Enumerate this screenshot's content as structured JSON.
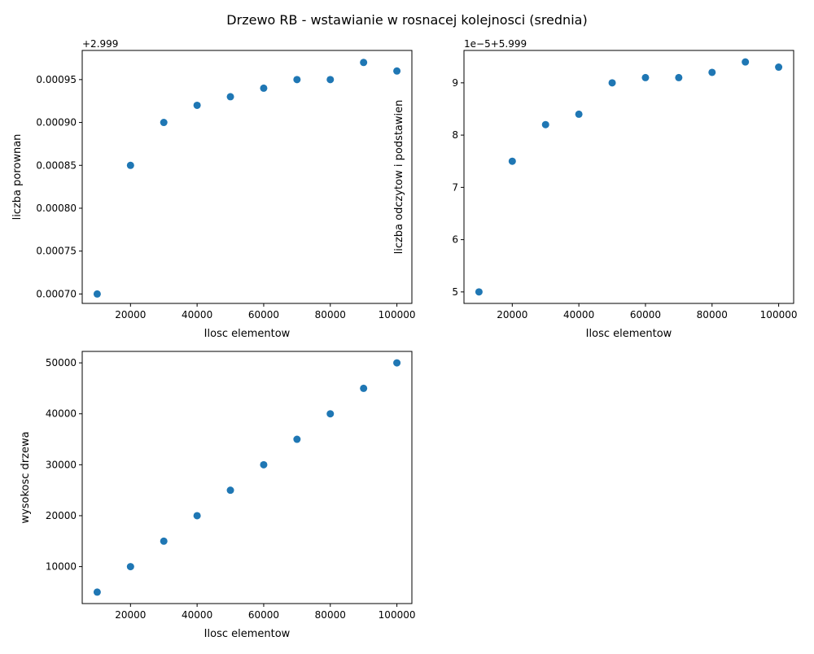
{
  "figure": {
    "suptitle": "Drzewo RB - wstawianie w rosnacej kolejnosci (srednia)"
  },
  "chart_data": [
    {
      "type": "scatter",
      "xlabel": "Ilosc elementow",
      "ylabel": "liczba porownan",
      "offset_label": "+2.999",
      "xlim": [
        5500,
        104500
      ],
      "ylim": [
        0.000689,
        0.000984
      ],
      "xticks": [
        20000,
        40000,
        60000,
        80000,
        100000
      ],
      "xtick_labels": [
        "20000",
        "40000",
        "60000",
        "80000",
        "100000"
      ],
      "yticks": [
        0.0007,
        0.00075,
        0.0008,
        0.00085,
        0.0009,
        0.00095
      ],
      "ytick_labels": [
        "0.00070",
        "0.00075",
        "0.00080",
        "0.00085",
        "0.00090",
        "0.00095"
      ],
      "x": [
        10000,
        20000,
        30000,
        40000,
        50000,
        60000,
        70000,
        80000,
        90000,
        100000
      ],
      "y": [
        0.0007,
        0.00085,
        0.0009,
        0.00092,
        0.00093,
        0.00094,
        0.00095,
        0.00095,
        0.00097,
        0.00096
      ],
      "color": "#1f77b4",
      "grid": false
    },
    {
      "type": "scatter",
      "xlabel": "Ilosc elementow",
      "ylabel": "liczba odczytow i podstawien",
      "offset_label": "1e−5+5.999",
      "xlim": [
        5500,
        104500
      ],
      "ylim": [
        4.78,
        9.62
      ],
      "xticks": [
        20000,
        40000,
        60000,
        80000,
        100000
      ],
      "xtick_labels": [
        "20000",
        "40000",
        "60000",
        "80000",
        "100000"
      ],
      "yticks": [
        5,
        6,
        7,
        8,
        9
      ],
      "ytick_labels": [
        "5",
        "6",
        "7",
        "8",
        "9"
      ],
      "x": [
        10000,
        20000,
        30000,
        40000,
        50000,
        60000,
        70000,
        80000,
        90000,
        100000
      ],
      "y": [
        5.0,
        7.5,
        8.2,
        8.4,
        9.0,
        9.1,
        9.1,
        9.2,
        9.4,
        9.3
      ],
      "color": "#1f77b4",
      "grid": false
    },
    {
      "type": "scatter",
      "xlabel": "Ilosc elementow",
      "ylabel": "wysokosc drzewa",
      "offset_label": "",
      "xlim": [
        5500,
        104500
      ],
      "ylim": [
        2750,
        52250
      ],
      "xticks": [
        20000,
        40000,
        60000,
        80000,
        100000
      ],
      "xtick_labels": [
        "20000",
        "40000",
        "60000",
        "80000",
        "100000"
      ],
      "yticks": [
        10000,
        20000,
        30000,
        40000,
        50000
      ],
      "ytick_labels": [
        "10000",
        "20000",
        "30000",
        "40000",
        "50000"
      ],
      "x": [
        10000,
        20000,
        30000,
        40000,
        50000,
        60000,
        70000,
        80000,
        90000,
        100000
      ],
      "y": [
        5000,
        10000,
        15000,
        20000,
        25000,
        30000,
        35000,
        40000,
        45000,
        50000
      ],
      "color": "#1f77b4",
      "grid": false
    }
  ]
}
